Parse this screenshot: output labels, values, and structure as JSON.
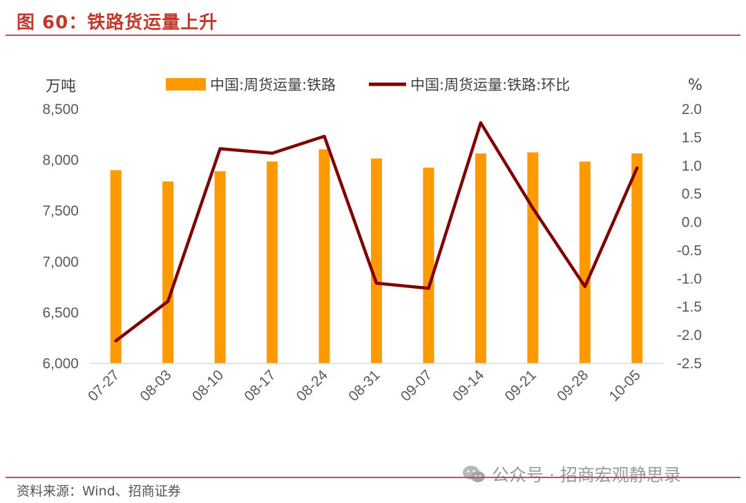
{
  "header": {
    "title": "图 60：铁路货运量上升"
  },
  "footer": {
    "source": "资料来源：Wind、招商证券",
    "watermark": "公众号 · 招商宏观静思录"
  },
  "colors": {
    "bar": "#FF9900",
    "line": "#800000",
    "rule": "#c0504d",
    "title": "#c0392b"
  },
  "chart_data": {
    "type": "bar",
    "categories": [
      "07-27",
      "08-03",
      "08-10",
      "08-17",
      "08-24",
      "08-31",
      "09-07",
      "09-14",
      "09-21",
      "09-28",
      "10-05"
    ],
    "left_axis_unit": "万吨",
    "right_axis_unit": "%",
    "ylim": [
      6000,
      8500
    ],
    "y_ticks": [
      "6,000",
      "6,500",
      "7,000",
      "7,500",
      "8,000",
      "8,500"
    ],
    "y_tick_values": [
      6000,
      6500,
      7000,
      7500,
      8000,
      8500
    ],
    "y2lim": [
      -2.5,
      2.0
    ],
    "y2_ticks": [
      "-2.5",
      "-2.0",
      "-1.5",
      "-1.0",
      "-0.5",
      "0.0",
      "0.5",
      "1.0",
      "1.5",
      "2.0"
    ],
    "y2_tick_values": [
      -2.5,
      -2.0,
      -1.5,
      -1.0,
      -0.5,
      0.0,
      0.5,
      1.0,
      1.5,
      2.0
    ],
    "series": [
      {
        "name": "中国:周货运量:铁路",
        "kind": "bar",
        "axis": "left",
        "values": [
          7900,
          7790,
          7890,
          7985,
          8105,
          8015,
          7925,
          8065,
          8075,
          7985,
          8065
        ]
      },
      {
        "name": "中国:周货运量:铁路:环比",
        "kind": "line",
        "axis": "right",
        "values": [
          -2.1,
          -1.4,
          1.3,
          1.22,
          1.52,
          -1.08,
          -1.17,
          1.76,
          0.25,
          -1.14,
          0.96
        ]
      }
    ],
    "legend_position": "top",
    "grid": false
  }
}
